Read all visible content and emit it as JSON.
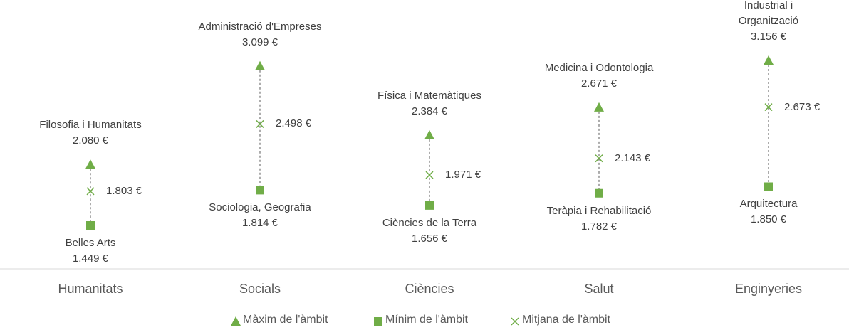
{
  "chart_data": {
    "type": "range",
    "categories": [
      "Humanitats",
      "Socials",
      "Ciències",
      "Salut",
      "Enginyeries"
    ],
    "series": [
      {
        "name": "Màxim de l'àmbit",
        "color": "#70ad47",
        "marker": "triangle",
        "values": [
          2080,
          3099,
          2384,
          2671,
          3156
        ],
        "value_labels": [
          "2.080 €",
          "3.099 €",
          "2.384 €",
          "2.671 €",
          "3.156 €"
        ],
        "point_names": [
          "Filosofia i Humanitats",
          "Administració d'Empreses",
          "Física i Matemàtiques",
          "Medicina i Odontologia",
          "Enginyeria Industrial i\nOrganització"
        ]
      },
      {
        "name": "Mínim de l'àmbit",
        "color": "#70ad47",
        "marker": "square",
        "values": [
          1449,
          1814,
          1656,
          1782,
          1850
        ],
        "value_labels": [
          "1.449 €",
          "1.814 €",
          "1.656 €",
          "1.782 €",
          "1.850 €"
        ],
        "point_names": [
          "Belles Arts",
          "Sociologia, Geografia",
          "Ciències de la Terra",
          "Teràpia i Rehabilitació",
          "Arquitectura"
        ]
      },
      {
        "name": "Mitjana de l'àmbit",
        "color": "#70ad47",
        "marker": "cross",
        "values": [
          1803,
          2498,
          1971,
          2143,
          2673
        ],
        "value_labels": [
          "1.803 €",
          "2.498 €",
          "1.971 €",
          "2.143 €",
          "2.673 €"
        ]
      }
    ]
  }
}
